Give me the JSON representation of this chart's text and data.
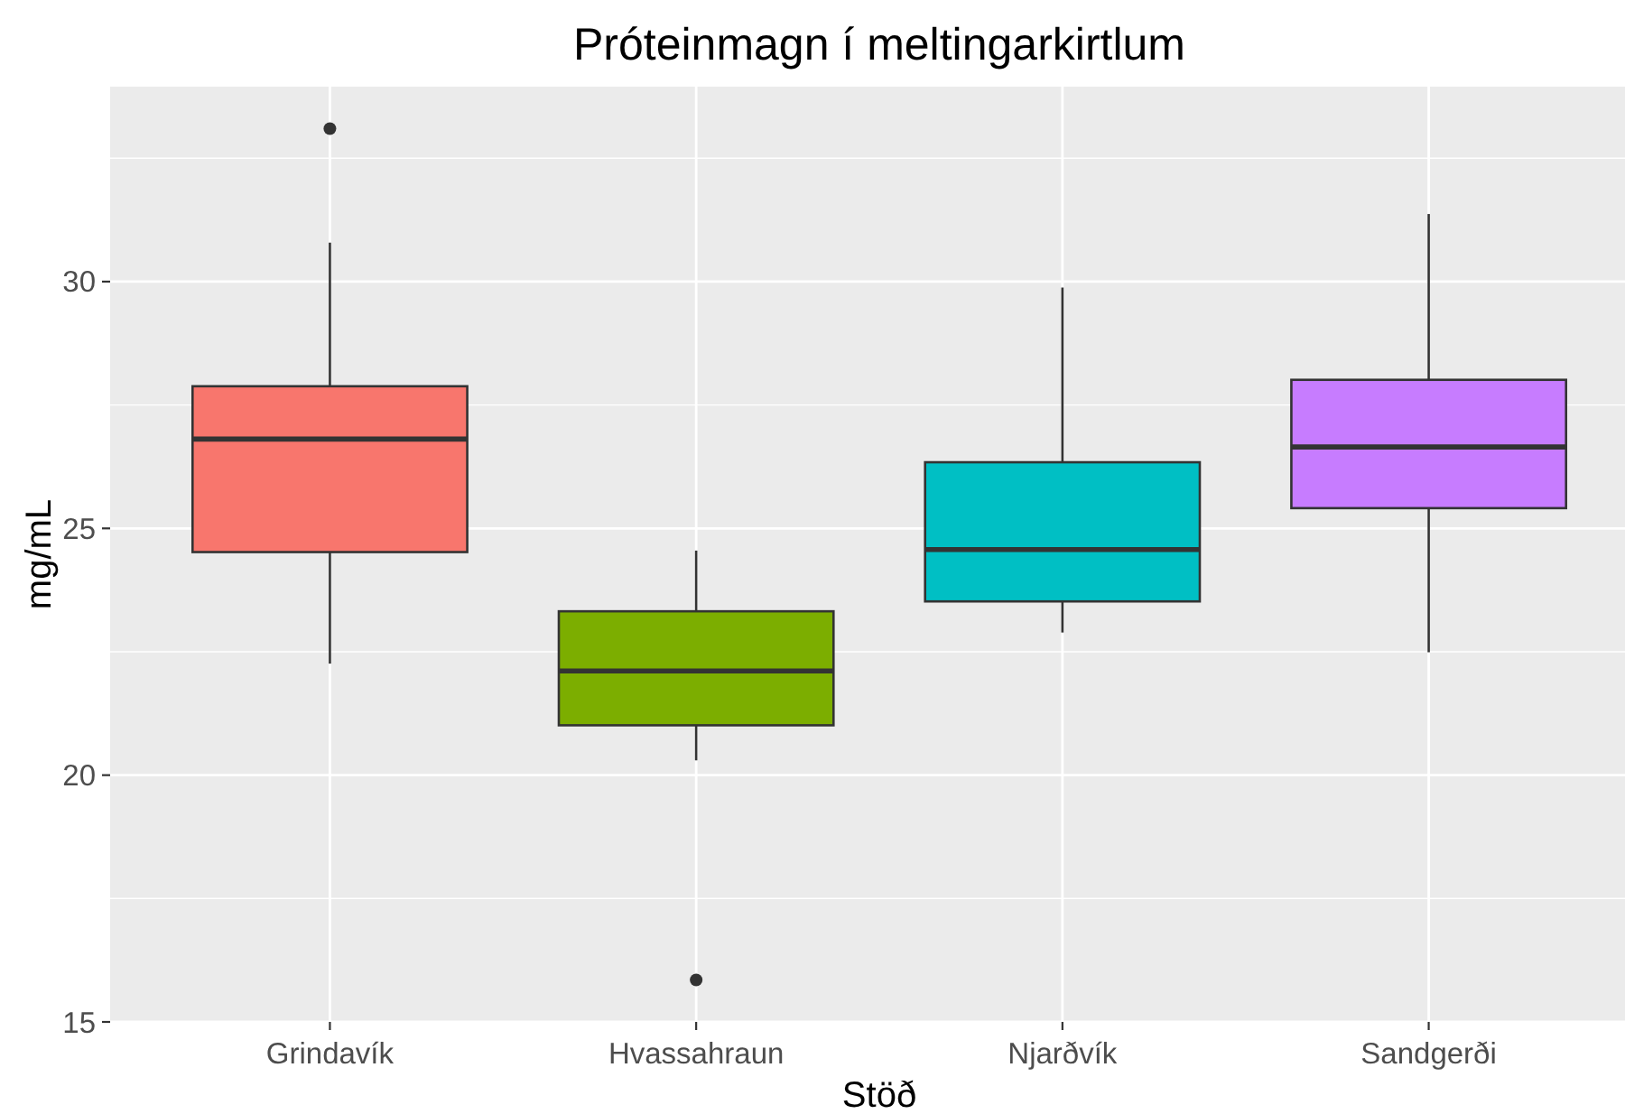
{
  "chart_data": {
    "type": "box",
    "title": "Próteinmagn í meltingarkirtlum",
    "xlabel": "Stöð",
    "ylabel": "mg/mL",
    "categories": [
      "Grindavík",
      "Hvassahraun",
      "Njarðvík",
      "Sandgerði"
    ],
    "boxes": [
      {
        "low": 22.26,
        "q1": 24.52,
        "median": 26.81,
        "q3": 27.88,
        "high": 30.79,
        "outliers": [
          33.1
        ]
      },
      {
        "low": 20.3,
        "q1": 21.01,
        "median": 22.11,
        "q3": 23.32,
        "high": 24.55,
        "outliers": [
          15.85
        ]
      },
      {
        "low": 22.89,
        "q1": 23.52,
        "median": 24.57,
        "q3": 26.34,
        "high": 29.88
      },
      {
        "low": 22.49,
        "q1": 25.41,
        "median": 26.65,
        "q3": 28.01,
        "high": 31.37
      }
    ],
    "colors": [
      "#f8766d",
      "#7cae00",
      "#00bfc4",
      "#c77cff"
    ],
    "ylim": [
      15,
      33.95
    ],
    "yticks": [
      15,
      20,
      25,
      30
    ],
    "grid": true,
    "legend": false
  }
}
